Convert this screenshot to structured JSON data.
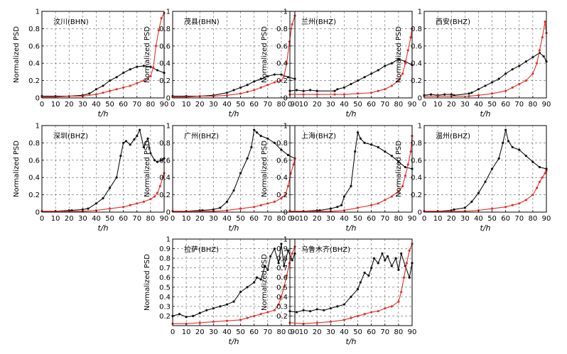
{
  "chart_data": {
    "type": "line",
    "panel_count": 10,
    "xlabel": "t/h",
    "ylabel": "Normalized PSD",
    "xlim": [
      0,
      90
    ],
    "xticks": [
      0,
      10,
      20,
      30,
      40,
      50,
      60,
      70,
      80,
      90
    ],
    "grid": "dashed",
    "series_colors": {
      "black": "#111111",
      "red": "#e8302a"
    },
    "panels": [
      {
        "title": "汶川(BHN)",
        "ylim": [
          0,
          1
        ],
        "yticks": [
          0,
          0.2,
          0.4,
          0.6,
          0.8,
          1
        ],
        "series": [
          {
            "color": "black",
            "x": [
              0,
              10,
              20,
              30,
              35,
              40,
              45,
              50,
              55,
              60,
              65,
              70,
              75,
              80,
              85,
              90
            ],
            "y": [
              0.02,
              0.02,
              0.02,
              0.03,
              0.05,
              0.1,
              0.14,
              0.2,
              0.24,
              0.29,
              0.33,
              0.36,
              0.37,
              0.36,
              0.32,
              0.29
            ]
          },
          {
            "color": "red",
            "x": [
              0,
              10,
              20,
              30,
              40,
              45,
              50,
              55,
              60,
              65,
              70,
              75,
              80,
              82,
              84,
              86,
              88,
              90
            ],
            "y": [
              0.01,
              0.01,
              0.02,
              0.02,
              0.04,
              0.06,
              0.08,
              0.1,
              0.12,
              0.14,
              0.17,
              0.2,
              0.25,
              0.35,
              0.6,
              0.78,
              0.92,
              0.98
            ]
          }
        ]
      },
      {
        "title": "茂县(BHN)",
        "ylim": [
          0,
          1
        ],
        "yticks": [
          0,
          0.2,
          0.4,
          0.6,
          0.8,
          1
        ],
        "series": [
          {
            "color": "black",
            "x": [
              0,
              10,
              20,
              30,
              40,
              45,
              50,
              55,
              60,
              65,
              70,
              75,
              80,
              85,
              90
            ],
            "y": [
              0.02,
              0.02,
              0.02,
              0.03,
              0.06,
              0.09,
              0.12,
              0.15,
              0.19,
              0.22,
              0.25,
              0.27,
              0.27,
              0.24,
              0.22
            ]
          },
          {
            "color": "red",
            "x": [
              0,
              10,
              20,
              30,
              40,
              50,
              55,
              60,
              65,
              70,
              75,
              80,
              82,
              84,
              86,
              88,
              90
            ],
            "y": [
              0.01,
              0.01,
              0.02,
              0.02,
              0.03,
              0.05,
              0.07,
              0.09,
              0.12,
              0.15,
              0.18,
              0.2,
              0.25,
              0.4,
              0.65,
              0.85,
              0.95
            ]
          }
        ]
      },
      {
        "title": "兰州(BHZ)",
        "ylim": [
          0,
          1
        ],
        "yticks": [
          0,
          0.2,
          0.4,
          0.6,
          0.8,
          1
        ],
        "series": [
          {
            "color": "black",
            "x": [
              0,
              5,
              10,
              15,
              20,
              33,
              35,
              40,
              45,
              50,
              55,
              60,
              65,
              70,
              75,
              80,
              85,
              90
            ],
            "y": [
              0.08,
              0.09,
              0.08,
              0.09,
              0.08,
              0.08,
              0.1,
              0.12,
              0.16,
              0.2,
              0.24,
              0.28,
              0.32,
              0.37,
              0.4,
              0.45,
              0.42,
              0.38
            ]
          },
          {
            "color": "red",
            "x": [
              0,
              10,
              20,
              33,
              40,
              50,
              60,
              65,
              70,
              75,
              80,
              83,
              85,
              87,
              89,
              90
            ],
            "y": [
              0.04,
              0.04,
              0.04,
              0.04,
              0.04,
              0.05,
              0.06,
              0.08,
              0.1,
              0.14,
              0.2,
              0.28,
              0.4,
              0.55,
              0.7,
              0.8
            ]
          }
        ]
      },
      {
        "title": "西安(BHZ)",
        "ylim": [
          0,
          1
        ],
        "yticks": [
          0,
          0.2,
          0.4,
          0.6,
          0.8,
          1
        ],
        "series": [
          {
            "color": "black",
            "x": [
              0,
              5,
              10,
              15,
              20,
              22,
              33,
              35,
              40,
              45,
              50,
              55,
              60,
              65,
              70,
              75,
              80,
              85,
              88,
              90
            ],
            "y": [
              0.03,
              0.04,
              0.03,
              0.04,
              0.04,
              0.03,
              0.05,
              0.06,
              0.1,
              0.14,
              0.18,
              0.22,
              0.28,
              0.33,
              0.37,
              0.42,
              0.47,
              0.52,
              0.48,
              0.42
            ]
          },
          {
            "color": "red",
            "x": [
              0,
              10,
              20,
              33,
              40,
              50,
              60,
              65,
              70,
              75,
              80,
              83,
              85,
              87,
              89,
              90
            ],
            "y": [
              0.02,
              0.02,
              0.02,
              0.02,
              0.03,
              0.05,
              0.08,
              0.12,
              0.16,
              0.2,
              0.28,
              0.4,
              0.55,
              0.7,
              0.88,
              0.75
            ]
          }
        ]
      },
      {
        "title": "深圳(BHZ)",
        "ylim": [
          0,
          1
        ],
        "yticks": [
          0,
          0.2,
          0.4,
          0.6,
          0.8,
          1
        ],
        "series": [
          {
            "color": "black",
            "x": [
              0,
              10,
              20,
              22,
              30,
              34,
              40,
              45,
              50,
              55,
              58,
              60,
              62,
              65,
              68,
              70,
              72,
              75,
              78,
              80,
              83,
              85,
              88,
              90
            ],
            "y": [
              0.01,
              0.01,
              0.02,
              0.02,
              0.03,
              0.04,
              0.1,
              0.16,
              0.28,
              0.4,
              0.65,
              0.8,
              0.82,
              0.78,
              0.84,
              0.88,
              0.95,
              0.75,
              0.85,
              0.68,
              0.6,
              0.58,
              0.6,
              0.62
            ]
          },
          {
            "color": "red",
            "x": [
              0,
              10,
              20,
              30,
              40,
              50,
              60,
              65,
              70,
              75,
              80,
              83,
              85,
              87,
              89,
              90
            ],
            "y": [
              0.01,
              0.01,
              0.01,
              0.01,
              0.02,
              0.04,
              0.06,
              0.08,
              0.1,
              0.12,
              0.15,
              0.18,
              0.22,
              0.3,
              0.4,
              0.45
            ]
          }
        ]
      },
      {
        "title": "广州(BHZ)",
        "ylim": [
          0,
          1
        ],
        "yticks": [
          0,
          0.2,
          0.4,
          0.6,
          0.8,
          1
        ],
        "series": [
          {
            "color": "black",
            "x": [
              0,
              10,
              20,
              22,
              30,
              35,
              40,
              45,
              50,
              55,
              58,
              60,
              62,
              65,
              70,
              75,
              80,
              85,
              90
            ],
            "y": [
              0.01,
              0.01,
              0.02,
              0.02,
              0.03,
              0.05,
              0.12,
              0.25,
              0.45,
              0.62,
              0.75,
              0.95,
              0.92,
              0.88,
              0.85,
              0.8,
              0.72,
              0.66,
              0.62
            ]
          },
          {
            "color": "red",
            "x": [
              0,
              10,
              20,
              30,
              40,
              50,
              60,
              65,
              70,
              75,
              80,
              83,
              85,
              87,
              89,
              90
            ],
            "y": [
              0.01,
              0.01,
              0.01,
              0.01,
              0.02,
              0.04,
              0.06,
              0.08,
              0.1,
              0.12,
              0.16,
              0.2,
              0.3,
              0.45,
              0.55,
              0.62
            ]
          }
        ]
      },
      {
        "title": "上海(BHZ)",
        "ylim": [
          0,
          1
        ],
        "yticks": [
          0,
          0.2,
          0.4,
          0.6,
          0.8,
          1
        ],
        "series": [
          {
            "color": "black",
            "x": [
              0,
              10,
              20,
              22,
              30,
              35,
              38,
              40,
              45,
              48,
              50,
              52,
              55,
              60,
              65,
              70,
              75,
              80,
              85,
              90
            ],
            "y": [
              0.01,
              0.01,
              0.02,
              0.02,
              0.04,
              0.06,
              0.08,
              0.18,
              0.3,
              0.7,
              0.92,
              0.85,
              0.8,
              0.78,
              0.75,
              0.7,
              0.65,
              0.58,
              0.52,
              0.5
            ]
          },
          {
            "color": "red",
            "x": [
              0,
              10,
              20,
              30,
              40,
              50,
              60,
              65,
              70,
              75,
              80,
              83,
              85,
              87,
              89,
              90
            ],
            "y": [
              0.01,
              0.01,
              0.01,
              0.01,
              0.02,
              0.05,
              0.08,
              0.1,
              0.14,
              0.18,
              0.24,
              0.3,
              0.42,
              0.55,
              0.7,
              0.88
            ]
          }
        ]
      },
      {
        "title": "温州(BHZ)",
        "ylim": [
          0,
          1
        ],
        "yticks": [
          0,
          0.2,
          0.4,
          0.6,
          0.8,
          1
        ],
        "series": [
          {
            "color": "black",
            "x": [
              0,
              10,
              20,
              22,
              30,
              35,
              40,
              45,
              50,
              55,
              58,
              60,
              62,
              65,
              70,
              75,
              80,
              85,
              90
            ],
            "y": [
              0.01,
              0.01,
              0.02,
              0.03,
              0.05,
              0.12,
              0.22,
              0.35,
              0.5,
              0.62,
              0.8,
              0.95,
              0.82,
              0.75,
              0.72,
              0.65,
              0.58,
              0.52,
              0.5
            ]
          },
          {
            "color": "red",
            "x": [
              0,
              10,
              20,
              30,
              40,
              50,
              60,
              65,
              70,
              75,
              80,
              83,
              85,
              87,
              89,
              90
            ],
            "y": [
              0.01,
              0.01,
              0.01,
              0.01,
              0.02,
              0.04,
              0.06,
              0.08,
              0.1,
              0.14,
              0.2,
              0.28,
              0.35,
              0.4,
              0.45,
              0.48
            ]
          }
        ]
      },
      {
        "title": "拉萨(BHZ)",
        "ylim": [
          0.1,
          1
        ],
        "yticks": [
          0.2,
          0.3,
          0.4,
          0.5,
          0.6,
          0.7,
          0.8,
          0.9,
          1
        ],
        "series": [
          {
            "color": "black",
            "x": [
              0,
              5,
              10,
              15,
              20,
              25,
              30,
              35,
              40,
              45,
              50,
              55,
              60,
              62,
              65,
              68,
              70,
              72,
              75,
              78,
              80,
              82,
              85,
              88,
              90
            ],
            "y": [
              0.2,
              0.22,
              0.19,
              0.2,
              0.23,
              0.26,
              0.28,
              0.3,
              0.32,
              0.35,
              0.45,
              0.5,
              0.55,
              0.6,
              0.58,
              0.72,
              0.68,
              0.82,
              0.9,
              0.75,
              0.95,
              0.72,
              0.88,
              0.78,
              0.85
            ]
          },
          {
            "color": "red",
            "x": [
              0,
              10,
              20,
              30,
              40,
              50,
              55,
              60,
              65,
              70,
              75,
              78,
              80,
              82,
              84,
              86,
              88,
              90
            ],
            "y": [
              0.12,
              0.12,
              0.13,
              0.14,
              0.15,
              0.16,
              0.18,
              0.2,
              0.22,
              0.24,
              0.26,
              0.32,
              0.4,
              0.5,
              0.62,
              0.75,
              0.85,
              0.92
            ]
          }
        ]
      },
      {
        "title": "乌鲁木齐(BHZ)",
        "ylim": [
          0.1,
          1
        ],
        "yticks": [
          0.2,
          0.3,
          0.4,
          0.5,
          0.6,
          0.7,
          0.8,
          0.9,
          1
        ],
        "series": [
          {
            "color": "black",
            "x": [
              0,
              5,
              10,
              15,
              20,
              25,
              30,
              35,
              40,
              45,
              50,
              52,
              55,
              58,
              60,
              62,
              65,
              68,
              70,
              72,
              75,
              78,
              80,
              82,
              85,
              88,
              90
            ],
            "y": [
              0.25,
              0.24,
              0.26,
              0.25,
              0.27,
              0.26,
              0.28,
              0.3,
              0.32,
              0.4,
              0.48,
              0.55,
              0.65,
              0.62,
              0.7,
              0.8,
              0.75,
              0.85,
              0.78,
              0.82,
              0.72,
              0.8,
              0.68,
              0.85,
              0.72,
              0.6,
              0.75
            ]
          },
          {
            "color": "red",
            "x": [
              0,
              10,
              20,
              30,
              40,
              45,
              50,
              55,
              60,
              65,
              70,
              75,
              80,
              82,
              84,
              86,
              88,
              90
            ],
            "y": [
              0.13,
              0.12,
              0.13,
              0.14,
              0.16,
              0.18,
              0.2,
              0.22,
              0.24,
              0.25,
              0.28,
              0.3,
              0.35,
              0.45,
              0.6,
              0.75,
              0.88,
              0.95
            ]
          }
        ]
      }
    ]
  }
}
